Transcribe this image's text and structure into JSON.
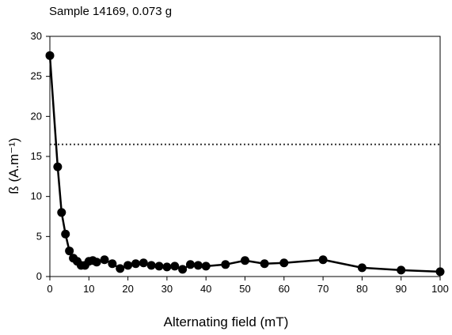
{
  "chart_data": {
    "type": "line",
    "title": "Sample 14169, 0.073 g",
    "xlabel": "Alternating field (mT)",
    "ylabel": "ß (A.m⁻¹)",
    "xlim": [
      0,
      100
    ],
    "ylim": [
      0,
      30
    ],
    "xticks": [
      0,
      10,
      20,
      30,
      40,
      50,
      60,
      70,
      80,
      90,
      100
    ],
    "yticks": [
      0,
      5,
      10,
      15,
      20,
      25,
      30
    ],
    "grid": false,
    "reference_line": {
      "y": 16.5,
      "style": "dotted"
    },
    "series": [
      {
        "marker": "circle",
        "color": "#000000",
        "x": [
          0,
          2,
          3,
          4,
          5,
          6,
          7,
          8,
          9,
          10,
          11,
          12,
          14,
          16,
          18,
          20,
          22,
          24,
          26,
          28,
          30,
          32,
          34,
          36,
          38,
          40,
          45,
          50,
          55,
          60,
          70,
          80,
          90,
          100
        ],
        "y": [
          27.6,
          13.7,
          8.0,
          5.3,
          3.2,
          2.3,
          1.9,
          1.4,
          1.4,
          1.9,
          2.0,
          1.8,
          2.1,
          1.6,
          1.0,
          1.4,
          1.6,
          1.7,
          1.4,
          1.3,
          1.2,
          1.3,
          0.9,
          1.5,
          1.4,
          1.3,
          1.5,
          2.0,
          1.6,
          1.7,
          2.1,
          1.1,
          0.8,
          0.6
        ]
      }
    ]
  }
}
